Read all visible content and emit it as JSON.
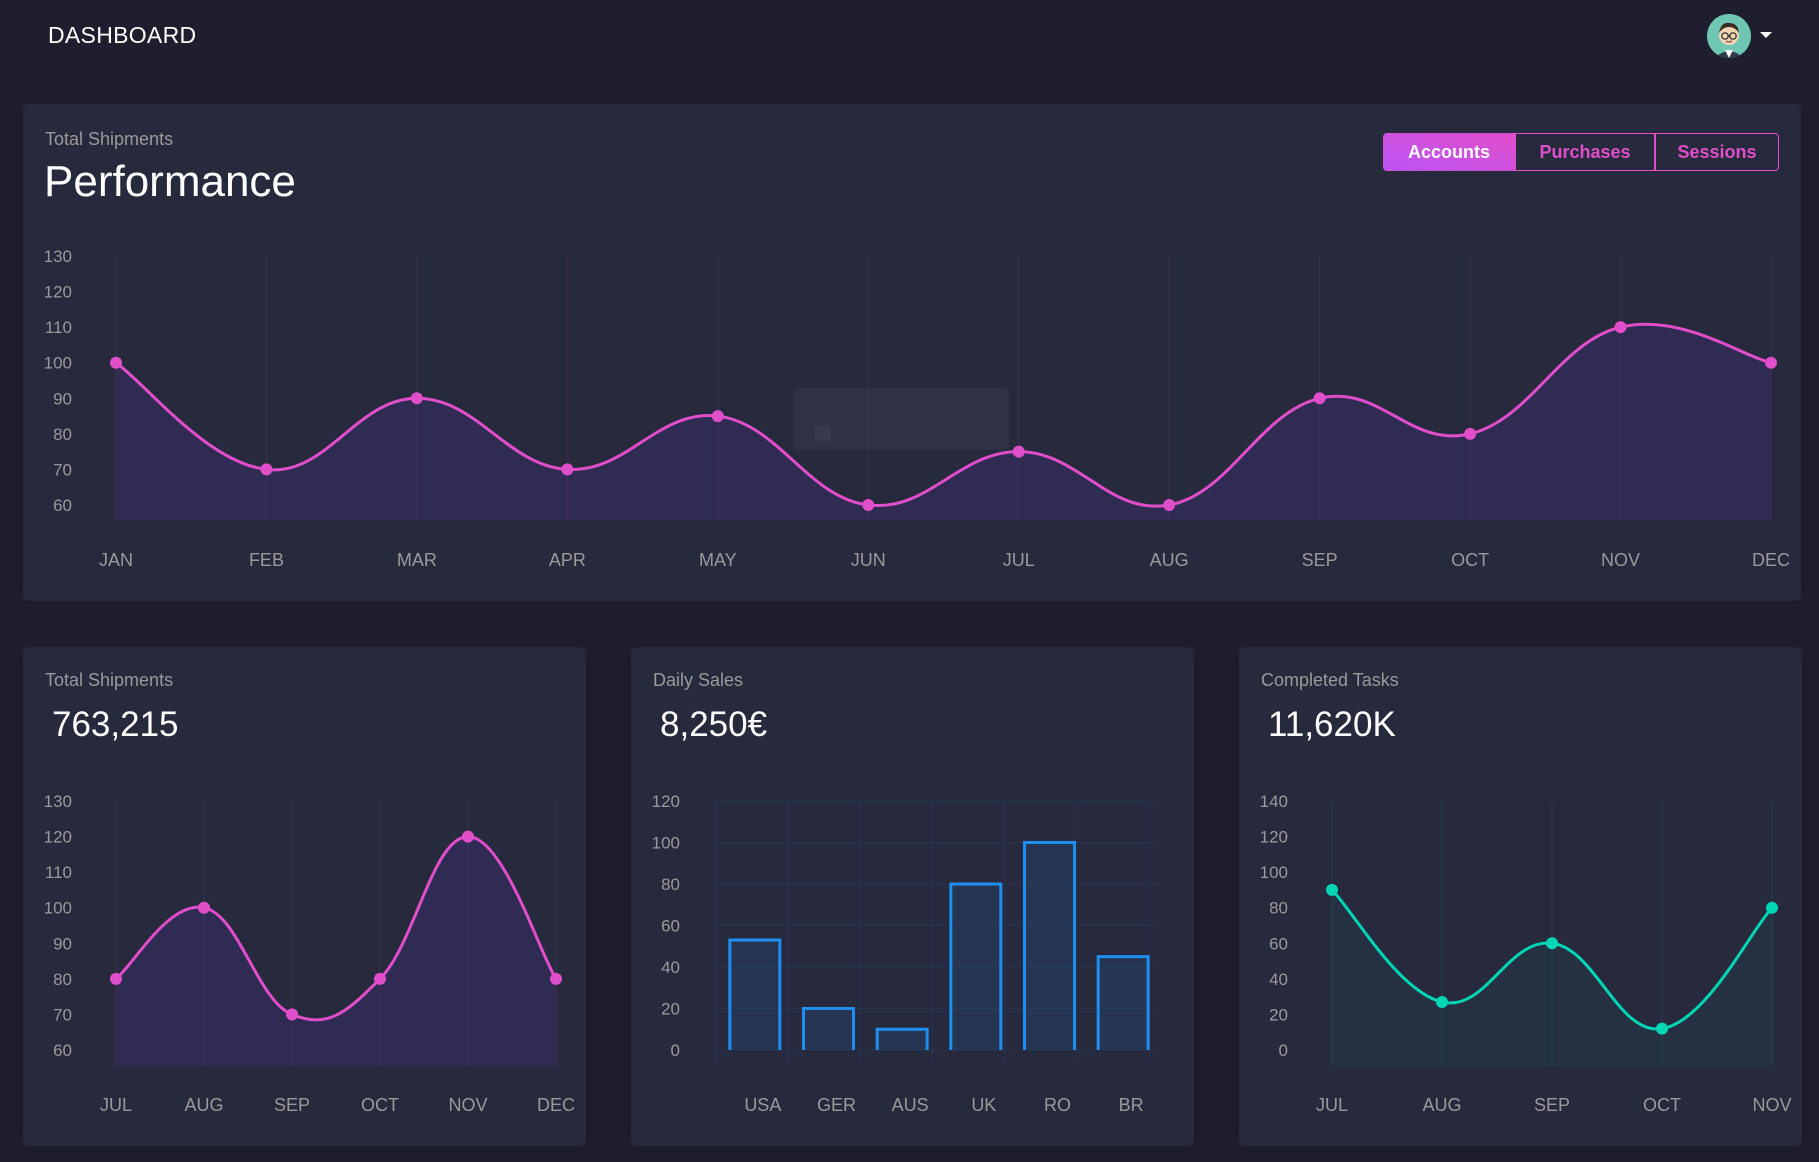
{
  "header": {
    "title": "DASHBOARD",
    "avatar_icon": "user-avatar-icon"
  },
  "main_card": {
    "category": "Total Shipments",
    "title": "Performance",
    "tabs": [
      {
        "label": "Accounts",
        "active": true
      },
      {
        "label": "Purchases",
        "active": false
      },
      {
        "label": "Sessions",
        "active": false
      }
    ]
  },
  "cards": [
    {
      "category": "Total Shipments",
      "value": "763,215"
    },
    {
      "category": "Daily Sales",
      "value": "8,250€"
    },
    {
      "category": "Completed Tasks",
      "value": "11,620K"
    }
  ],
  "colors": {
    "accent": "#e14eca",
    "blue": "#1f8ef1",
    "teal": "#00d6b4",
    "card_bg": "#27293d",
    "page_bg": "#1e1e2f"
  },
  "chart_data": [
    {
      "type": "line",
      "categories": [
        "JAN",
        "FEB",
        "MAR",
        "APR",
        "MAY",
        "JUN",
        "JUL",
        "AUG",
        "SEP",
        "OCT",
        "NOV",
        "DEC"
      ],
      "values": [
        100,
        70,
        90,
        70,
        85,
        60,
        75,
        60,
        90,
        80,
        110,
        100
      ],
      "yticks": [
        60,
        70,
        80,
        90,
        100,
        110,
        120,
        130
      ],
      "ylim": [
        60,
        130
      ],
      "color": "#e14eca",
      "grid": "vertical"
    },
    {
      "type": "line",
      "categories": [
        "JUL",
        "AUG",
        "SEP",
        "OCT",
        "NOV",
        "DEC"
      ],
      "values": [
        80,
        100,
        70,
        80,
        120,
        80
      ],
      "yticks": [
        60,
        70,
        80,
        90,
        100,
        110,
        120,
        130
      ],
      "ylim": [
        60,
        130
      ],
      "color": "#e14eca",
      "grid": "vertical"
    },
    {
      "type": "bar",
      "categories": [
        "USA",
        "GER",
        "AUS",
        "UK",
        "RO",
        "BR"
      ],
      "values": [
        53,
        20,
        10,
        80,
        100,
        45
      ],
      "yticks": [
        0,
        20,
        40,
        60,
        80,
        100,
        120
      ],
      "ylim": [
        0,
        120
      ],
      "color": "#1f8ef1",
      "grid": "both"
    },
    {
      "type": "line",
      "categories": [
        "JUL",
        "AUG",
        "SEP",
        "OCT",
        "NOV"
      ],
      "values": [
        90,
        27,
        60,
        12,
        80
      ],
      "yticks": [
        0,
        20,
        40,
        60,
        80,
        100,
        120,
        140
      ],
      "ylim": [
        0,
        140
      ],
      "color": "#00d6b4",
      "grid": "vertical"
    }
  ]
}
